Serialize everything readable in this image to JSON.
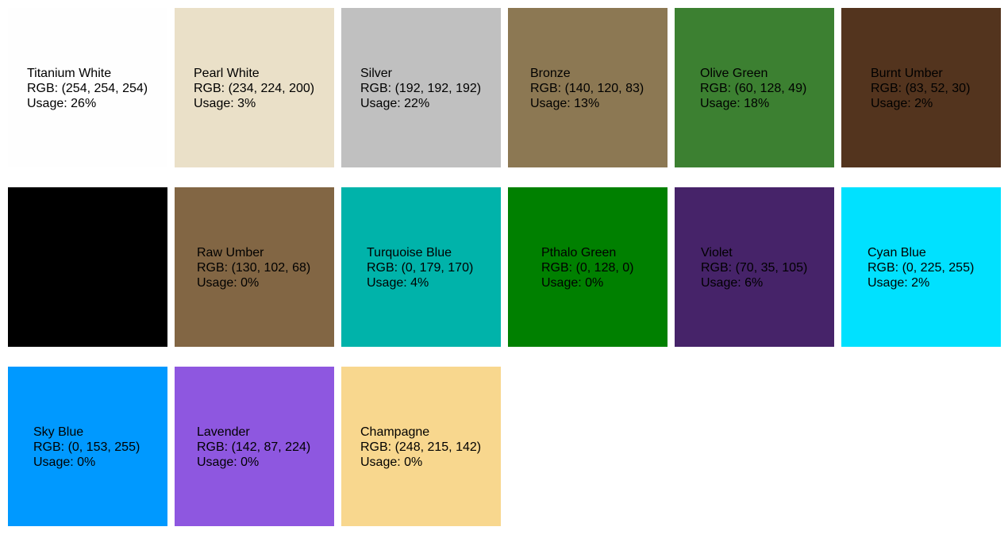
{
  "palette": {
    "swatches": [
      {
        "name": "Titanium White",
        "rgb": "RGB: (254, 254, 254)",
        "usage": "Usage: 26%",
        "color": "#fefefe"
      },
      {
        "name": "Pearl White",
        "rgb": "RGB: (234, 224, 200)",
        "usage": "Usage: 3%",
        "color": "#eae0c8"
      },
      {
        "name": "Silver",
        "rgb": "RGB: (192, 192, 192)",
        "usage": "Usage: 22%",
        "color": "#c0c0c0"
      },
      {
        "name": "Bronze",
        "rgb": "RGB: (140, 120, 83)",
        "usage": "Usage: 13%",
        "color": "#8c7853"
      },
      {
        "name": "Olive Green",
        "rgb": "RGB: (60, 128, 49)",
        "usage": "Usage: 18%",
        "color": "#3c8031"
      },
      {
        "name": "Burnt Umber",
        "rgb": "RGB: (83, 52, 30)",
        "usage": "Usage: 2%",
        "color": "#53341e"
      },
      {
        "name": "",
        "rgb": "",
        "usage": "",
        "color": "#000000"
      },
      {
        "name": "Raw Umber",
        "rgb": "RGB: (130, 102, 68)",
        "usage": "Usage: 0%",
        "color": "#826644"
      },
      {
        "name": "Turquoise Blue",
        "rgb": "RGB: (0, 179, 170)",
        "usage": "Usage: 4%",
        "color": "#00b3aa"
      },
      {
        "name": "Pthalo Green",
        "rgb": "RGB: (0, 128, 0)",
        "usage": "Usage: 0%",
        "color": "#008000"
      },
      {
        "name": "Violet",
        "rgb": "RGB: (70, 35, 105)",
        "usage": "Usage: 6%",
        "color": "#462369"
      },
      {
        "name": "Cyan Blue",
        "rgb": "RGB: (0, 225, 255)",
        "usage": "Usage: 2%",
        "color": "#00e1ff"
      },
      {
        "name": "Sky Blue",
        "rgb": "RGB: (0, 153, 255)",
        "usage": "Usage: 0%",
        "color": "#0099ff"
      },
      {
        "name": "Lavender",
        "rgb": "RGB: (142, 87, 224)",
        "usage": "Usage: 0%",
        "color": "#8e57e0"
      },
      {
        "name": "Champagne",
        "rgb": "RGB: (248, 215, 142)",
        "usage": "Usage: 0%",
        "color": "#f8d78e"
      }
    ]
  }
}
